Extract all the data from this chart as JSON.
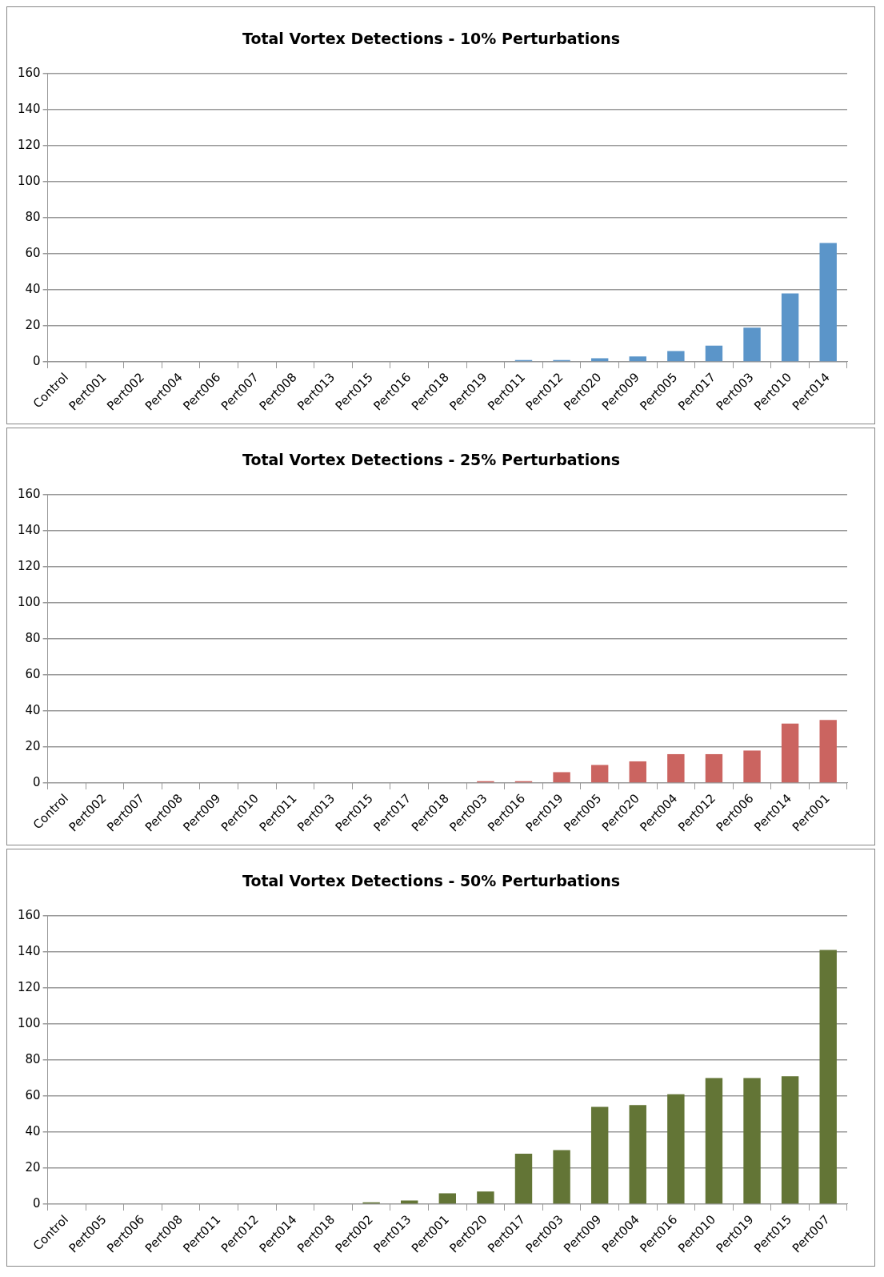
{
  "chart_data": [
    {
      "type": "bar",
      "title": "Total Vortex Detections - 10% Perturbations",
      "categories": [
        "Control",
        "Pert001",
        "Pert002",
        "Pert004",
        "Pert006",
        "Pert007",
        "Pert008",
        "Pert013",
        "Pert015",
        "Pert016",
        "Pert018",
        "Pert019",
        "Pert011",
        "Pert012",
        "Pert020",
        "Pert009",
        "Pert005",
        "Pert017",
        "Pert003",
        "Pert010",
        "Pert014"
      ],
      "values": [
        0,
        0,
        0,
        0,
        0,
        0,
        0,
        0,
        0,
        0,
        0,
        0,
        1,
        1,
        2,
        3,
        6,
        9,
        19,
        38,
        66
      ],
      "color": "#5b95c9",
      "ylim": [
        0,
        160
      ],
      "yticks": [
        0,
        20,
        40,
        60,
        80,
        100,
        120,
        140,
        160
      ],
      "grid": "y"
    },
    {
      "type": "bar",
      "title": "Total Vortex Detections - 25% Perturbations",
      "categories": [
        "Control",
        "Pert002",
        "Pert007",
        "Pert008",
        "Pert009",
        "Pert010",
        "Pert011",
        "Pert013",
        "Pert015",
        "Pert017",
        "Pert018",
        "Pert003",
        "Pert016",
        "Pert019",
        "Pert005",
        "Pert020",
        "Pert004",
        "Pert012",
        "Pert006",
        "Pert014",
        "Pert001"
      ],
      "values": [
        0,
        0,
        0,
        0,
        0,
        0,
        0,
        0,
        0,
        0,
        0,
        1,
        1,
        6,
        10,
        12,
        16,
        16,
        18,
        33,
        35
      ],
      "color": "#cb6460",
      "ylim": [
        0,
        160
      ],
      "yticks": [
        0,
        20,
        40,
        60,
        80,
        100,
        120,
        140,
        160
      ],
      "grid": "y"
    },
    {
      "type": "bar",
      "title": "Total Vortex Detections - 50% Perturbations",
      "categories": [
        "Control",
        "Pert005",
        "Pert006",
        "Pert008",
        "Pert011",
        "Pert012",
        "Pert014",
        "Pert018",
        "Pert002",
        "Pert013",
        "Pert001",
        "Pert020",
        "Pert017",
        "Pert003",
        "Pert009",
        "Pert004",
        "Pert016",
        "Pert010",
        "Pert019",
        "Pert015",
        "Pert007"
      ],
      "values": [
        0,
        0,
        0,
        0,
        0,
        0,
        0,
        0,
        1,
        2,
        6,
        7,
        28,
        30,
        54,
        55,
        61,
        70,
        70,
        71,
        141
      ],
      "color": "#637536",
      "ylim": [
        0,
        160
      ],
      "yticks": [
        0,
        20,
        40,
        60,
        80,
        100,
        120,
        140,
        160
      ],
      "grid": "y"
    }
  ]
}
